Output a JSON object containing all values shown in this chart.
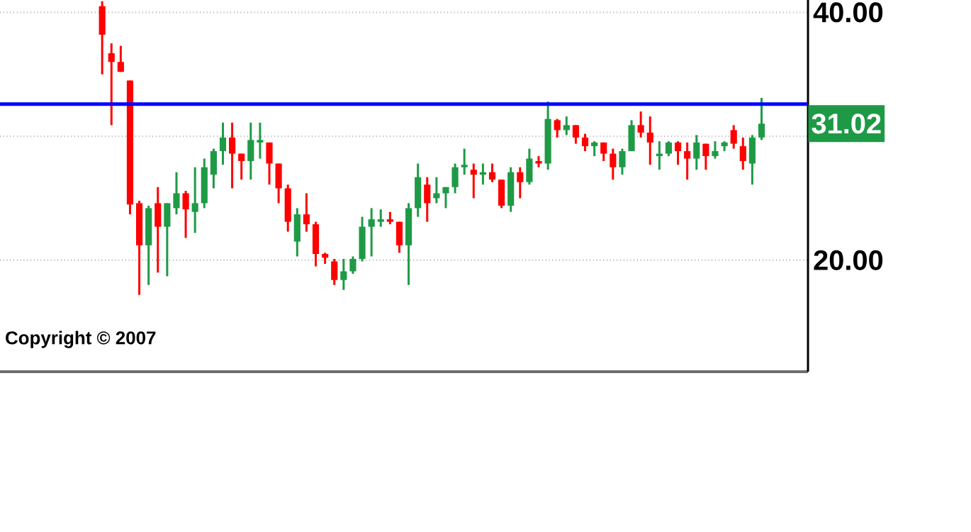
{
  "chart_data": {
    "type": "candlestick",
    "categories": [
      null,
      null,
      null,
      null,
      null,
      null,
      null,
      null,
      null,
      null,
      null,
      null,
      null,
      null,
      null,
      null,
      null,
      null,
      null,
      null,
      null,
      null,
      null,
      null,
      null,
      null,
      null,
      null,
      null,
      null,
      null,
      null,
      null,
      null,
      null,
      null,
      null,
      null,
      null,
      null,
      null,
      null,
      null,
      null,
      null,
      null,
      null,
      null,
      null,
      null,
      null,
      null,
      null,
      null,
      null,
      null,
      null,
      null,
      null,
      null,
      null,
      null,
      null,
      null,
      null,
      null,
      null,
      null,
      null,
      null,
      null,
      null
    ],
    "ohlc": [
      [
        40.5,
        40.9,
        35.0,
        38.2
      ],
      [
        36.7,
        37.5,
        30.9,
        36.0
      ],
      [
        36.0,
        37.3,
        35.2,
        35.2
      ],
      [
        34.5,
        34.5,
        23.7,
        24.5
      ],
      [
        24.6,
        24.8,
        17.2,
        21.2
      ],
      [
        21.2,
        24.4,
        18.0,
        24.2
      ],
      [
        24.6,
        25.9,
        19.0,
        22.7
      ],
      [
        22.7,
        24.6,
        18.7,
        24.6
      ],
      [
        24.2,
        27.1,
        23.7,
        25.4
      ],
      [
        25.4,
        25.6,
        21.8,
        24.1
      ],
      [
        23.9,
        27.5,
        22.2,
        24.6
      ],
      [
        24.6,
        28.2,
        24.2,
        27.5
      ],
      [
        26.9,
        29.0,
        25.8,
        28.8
      ],
      [
        28.8,
        31.1,
        27.7,
        29.9
      ],
      [
        29.9,
        31.1,
        25.8,
        28.6
      ],
      [
        28.6,
        28.6,
        26.5,
        28.0
      ],
      [
        28.0,
        31.1,
        26.5,
        29.7
      ],
      [
        29.5,
        31.1,
        28.2,
        29.7
      ],
      [
        29.5,
        29.5,
        26.1,
        27.8
      ],
      [
        27.8,
        27.8,
        24.6,
        25.8
      ],
      [
        25.8,
        26.1,
        22.3,
        23.1
      ],
      [
        21.5,
        24.2,
        20.3,
        23.7
      ],
      [
        23.7,
        25.4,
        22.3,
        22.9
      ],
      [
        22.9,
        23.1,
        19.5,
        20.5
      ],
      [
        20.5,
        20.6,
        19.7,
        20.2
      ],
      [
        19.9,
        20.1,
        18.0,
        18.4
      ],
      [
        18.4,
        20.1,
        17.6,
        19.1
      ],
      [
        19.1,
        20.3,
        18.9,
        20.1
      ],
      [
        20.1,
        23.5,
        19.9,
        22.7
      ],
      [
        22.7,
        24.2,
        20.3,
        23.3
      ],
      [
        23.1,
        24.1,
        22.7,
        23.3
      ],
      [
        23.3,
        23.9,
        22.9,
        23.1
      ],
      [
        23.1,
        23.1,
        20.6,
        21.2
      ],
      [
        21.2,
        24.6,
        18.0,
        24.2
      ],
      [
        24.2,
        27.8,
        23.5,
        26.7
      ],
      [
        26.1,
        26.7,
        23.1,
        24.6
      ],
      [
        25.0,
        26.7,
        24.6,
        25.4
      ],
      [
        25.4,
        25.9,
        24.2,
        25.9
      ],
      [
        25.9,
        27.8,
        25.4,
        27.5
      ],
      [
        27.5,
        29.0,
        26.9,
        27.7
      ],
      [
        27.3,
        27.8,
        25.0,
        26.9
      ],
      [
        26.9,
        27.8,
        26.1,
        27.1
      ],
      [
        27.1,
        27.8,
        26.3,
        26.5
      ],
      [
        26.5,
        26.5,
        24.2,
        24.4
      ],
      [
        24.4,
        27.5,
        23.9,
        27.1
      ],
      [
        27.1,
        27.5,
        25.0,
        26.3
      ],
      [
        26.3,
        29.0,
        26.1,
        28.2
      ],
      [
        28.0,
        28.4,
        27.5,
        27.8
      ],
      [
        27.8,
        32.8,
        27.3,
        31.4
      ],
      [
        31.3,
        31.4,
        29.9,
        30.5
      ],
      [
        30.5,
        31.6,
        30.1,
        30.9
      ],
      [
        30.9,
        30.9,
        29.4,
        29.9
      ],
      [
        29.9,
        30.2,
        28.8,
        29.2
      ],
      [
        29.2,
        29.6,
        28.4,
        29.5
      ],
      [
        29.5,
        29.5,
        28.0,
        28.6
      ],
      [
        28.6,
        29.0,
        26.5,
        27.5
      ],
      [
        27.5,
        29.0,
        26.9,
        28.8
      ],
      [
        28.8,
        31.3,
        28.8,
        30.9
      ],
      [
        30.9,
        32.0,
        29.9,
        30.3
      ],
      [
        30.3,
        31.6,
        27.7,
        29.5
      ],
      [
        28.4,
        29.6,
        27.3,
        28.6
      ],
      [
        28.6,
        29.6,
        28.4,
        29.5
      ],
      [
        29.5,
        29.6,
        27.7,
        28.8
      ],
      [
        28.8,
        29.5,
        26.5,
        28.2
      ],
      [
        28.2,
        30.1,
        27.3,
        29.5
      ],
      [
        29.4,
        29.4,
        27.3,
        28.4
      ],
      [
        28.4,
        29.6,
        28.2,
        28.8
      ],
      [
        29.2,
        29.6,
        28.8,
        29.5
      ],
      [
        30.5,
        30.9,
        29.0,
        29.4
      ],
      [
        29.2,
        29.9,
        27.3,
        28.0
      ],
      [
        27.8,
        30.1,
        26.1,
        29.9
      ],
      [
        29.9,
        33.1,
        29.7,
        31.02
      ]
    ],
    "colors": [
      "#ff0000",
      "#ff0000",
      "#ff0000",
      "#ff0000",
      "#ff0000",
      "#1e9a46",
      "#ff0000",
      "#1e9a46",
      "#1e9a46",
      "#ff0000",
      "#1e9a46",
      "#1e9a46",
      "#1e9a46",
      "#1e9a46",
      "#ff0000",
      "#ff0000",
      "#1e9a46",
      "#1e9a46",
      "#ff0000",
      "#ff0000",
      "#ff0000",
      "#1e9a46",
      "#ff0000",
      "#ff0000",
      "#ff0000",
      "#ff0000",
      "#1e9a46",
      "#1e9a46",
      "#1e9a46",
      "#1e9a46",
      "#1e9a46",
      "#ff0000",
      "#ff0000",
      "#1e9a46",
      "#1e9a46",
      "#ff0000",
      "#1e9a46",
      "#1e9a46",
      "#1e9a46",
      "#1e9a46",
      "#ff0000",
      "#1e9a46",
      "#ff0000",
      "#ff0000",
      "#1e9a46",
      "#ff0000",
      "#1e9a46",
      "#ff0000",
      "#1e9a46",
      "#ff0000",
      "#1e9a46",
      "#ff0000",
      "#ff0000",
      "#1e9a46",
      "#ff0000",
      "#ff0000",
      "#1e9a46",
      "#1e9a46",
      "#ff0000",
      "#ff0000",
      "#1e9a46",
      "#1e9a46",
      "#ff0000",
      "#ff0000",
      "#1e9a46",
      "#ff0000",
      "#1e9a46",
      "#1e9a46",
      "#ff0000",
      "#ff0000",
      "#1e9a46",
      "#1e9a46"
    ],
    "ylim": [
      11,
      41
    ],
    "yticks": [
      {
        "value": 40,
        "label": "40.00"
      },
      {
        "value": 30,
        "label": null
      },
      {
        "value": 20,
        "label": "20.00"
      }
    ],
    "grid": "y",
    "ref_lines": [
      {
        "axis": "y",
        "value": 32.6,
        "color": "#0000ff"
      }
    ],
    "annotations": [
      "31.02",
      "Copyright © 2007"
    ]
  }
}
